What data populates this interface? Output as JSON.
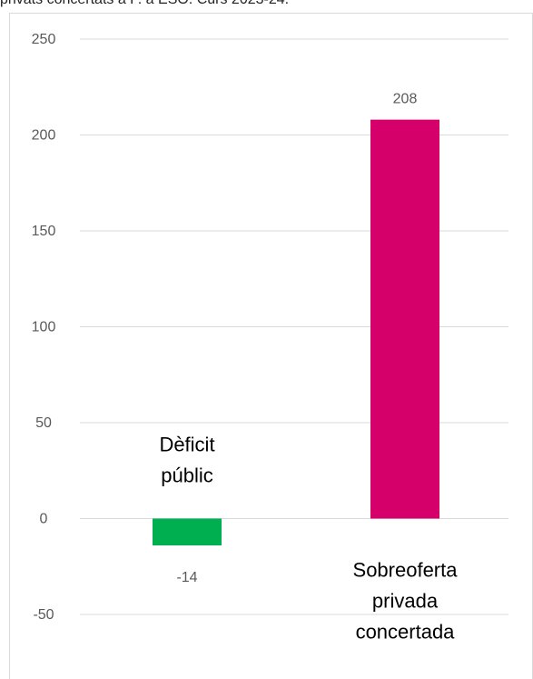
{
  "header": {
    "text": "privats concertats a P. a ESO. Curs 2023-24."
  },
  "chart_data": {
    "type": "bar",
    "categories": [
      {
        "name": "Dèficit públic",
        "lines": [
          "Dèficit",
          "públic"
        ]
      },
      {
        "name": "Sobreoferta privada concertada",
        "lines": [
          "Sobreoferta",
          "privada",
          "concertada"
        ]
      }
    ],
    "values": [
      -14,
      208
    ],
    "data_labels": [
      "-14",
      "208"
    ],
    "colors": [
      "#00b050",
      "#d6006b"
    ],
    "yticks": [
      "250",
      "200",
      "150",
      "100",
      "50",
      "0",
      "-50"
    ],
    "ylim": [
      -50,
      250
    ],
    "grid": true,
    "title": "",
    "xlabel": "",
    "ylabel": ""
  }
}
